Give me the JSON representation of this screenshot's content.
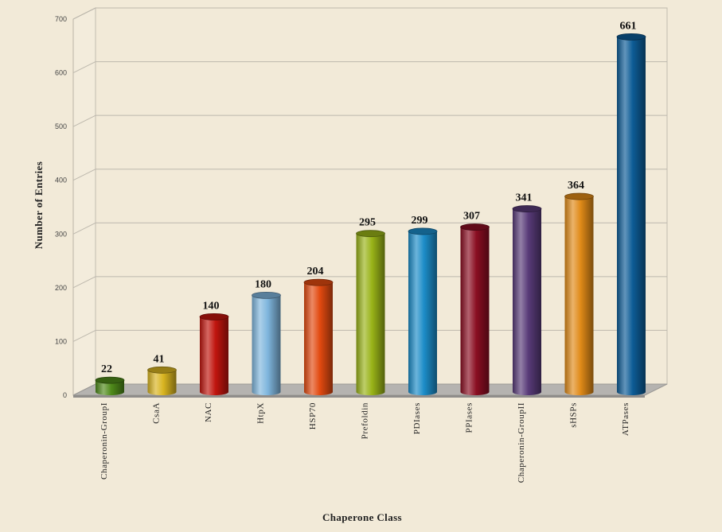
{
  "chart_data": {
    "type": "bar",
    "title": "",
    "xlabel": "Chaperone Class",
    "ylabel": "Number of Entries",
    "ylim": [
      0,
      700
    ],
    "yticks": [
      0,
      100,
      200,
      300,
      400,
      500,
      600,
      700
    ],
    "grid": true,
    "legend": "none",
    "style": "3d-cylinder",
    "categories": [
      "Chaperonin-GroupI",
      "CsaA",
      "NAC",
      "HtpX",
      "HSP70",
      "Prefoldin",
      "PDIases",
      "PPIases",
      "Chaperonin-GroupII",
      "sHSPs",
      "ATPases"
    ],
    "values": [
      22,
      41,
      140,
      180,
      204,
      295,
      299,
      307,
      341,
      364,
      661
    ],
    "data_labels": [
      "22",
      "41",
      "140",
      "180",
      "204",
      "295",
      "299",
      "307",
      "341",
      "364",
      "661"
    ],
    "colors": [
      "#4f8a1a",
      "#d8b420",
      "#c0150e",
      "#7fb6dd",
      "#e24a10",
      "#99b318",
      "#1c8cc8",
      "#8a0e22",
      "#583a78",
      "#e08a18",
      "#0d5c96"
    ]
  }
}
